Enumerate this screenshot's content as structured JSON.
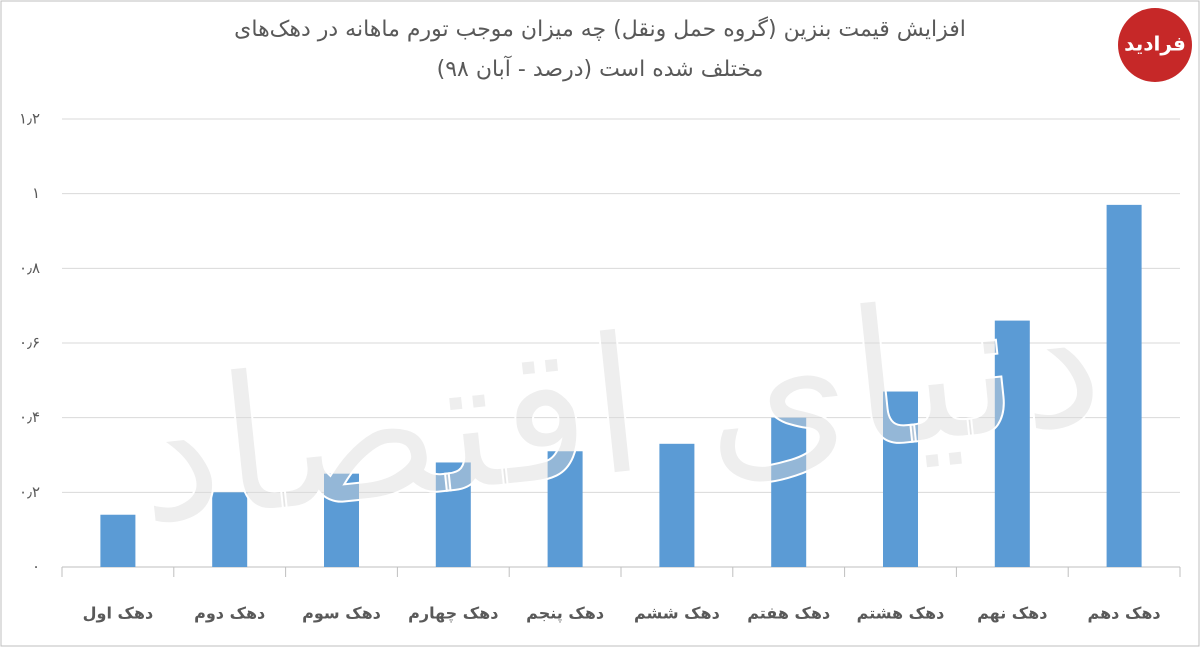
{
  "chart_data": {
    "type": "bar",
    "title": [
      "افزایش قیمت بنزین (گروه حمل ونقل) چه میزان موجب تورم ماهانه در دهک‌های",
      "مختلف شده است (درصد - آبان ۹۸)"
    ],
    "logo": "فرادید",
    "watermark": "دنیای اقتصاد",
    "categories": [
      "دهک اول",
      "دهک دوم",
      "دهک سوم",
      "دهک چهارم",
      "دهک پنجم",
      "دهک ششم",
      "دهک هفتم",
      "دهک هشتم",
      "دهک نهم",
      "دهک دهم"
    ],
    "values": [
      0.14,
      0.2,
      0.25,
      0.28,
      0.31,
      0.33,
      0.4,
      0.47,
      0.66,
      0.97
    ],
    "color": "#5b9bd5",
    "ylim": [
      0,
      1.2
    ],
    "yticks": [
      {
        "value": 0,
        "label": "۰"
      },
      {
        "value": 0.2,
        "label": "۰٫۲"
      },
      {
        "value": 0.4,
        "label": "۰٫۴"
      },
      {
        "value": 0.6,
        "label": "۰٫۶"
      },
      {
        "value": 0.8,
        "label": "۰٫۸"
      },
      {
        "value": 1,
        "label": "۱"
      },
      {
        "value": 1.2,
        "label": "۱٫۲"
      }
    ],
    "grid": true
  }
}
